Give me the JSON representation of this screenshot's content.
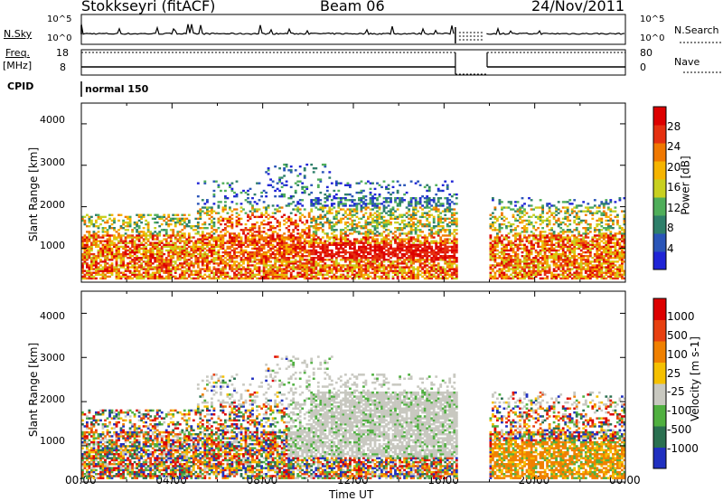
{
  "header": {
    "title": "Stokkseyri (fitACF)",
    "beam": "Beam 06",
    "date": "24/Nov/2011"
  },
  "side_labels": {
    "nsky": "N.Sky",
    "freq": "Freq.",
    "mhz": "[MHz]",
    "cpid": "CPID",
    "nsearch": "N.Search",
    "nave": "Nave"
  },
  "cpid_value": "normal 150",
  "chart_data": [
    {
      "type": "line",
      "panel": "N.Sky / N.Search",
      "ylabel_left": [
        "10^5",
        "10^0"
      ],
      "ylabel_right": [
        "10^5",
        "10^0"
      ],
      "gap_hours": [
        16.5,
        17.9
      ]
    },
    {
      "type": "line",
      "panel": "Freq / Nave",
      "ylabel_left": [
        "18",
        "8"
      ],
      "ylabel_right": [
        "80",
        "0"
      ],
      "gap_hours": [
        16.5,
        17.9
      ]
    },
    {
      "type": "heatmap",
      "panel": "Power",
      "ylabel": "Slant Range [km]",
      "y_ticks": [
        "4000",
        "3000",
        "2000",
        "1000"
      ],
      "ylim": [
        180,
        4500
      ],
      "colorbar_label": "Power [dB]",
      "colorbar_ticks": [
        "28",
        "24",
        "20",
        "16",
        "12",
        "8",
        "4"
      ],
      "colors": [
        "#1f24d6",
        "#2a55b8",
        "#2e7f6a",
        "#4fae5a",
        "#c8d020",
        "#f5b400",
        "#f07800",
        "#e53010",
        "#dd0000"
      ]
    },
    {
      "type": "heatmap",
      "panel": "Velocity",
      "ylabel": "Slant Range [km]",
      "y_ticks": [
        "4000",
        "3000",
        "2000",
        "1000"
      ],
      "ylim": [
        180,
        4500
      ],
      "colorbar_label": "Velocity  [m s-1]",
      "colorbar_ticks": [
        "1000",
        "500",
        "100",
        "25",
        "-25",
        "-100",
        "-500",
        "-1000"
      ],
      "colors": [
        "#2030c0",
        "#2a7050",
        "#50b040",
        "#c8c8c0",
        "#f5c000",
        "#f08000",
        "#e84010",
        "#dd0000"
      ]
    }
  ],
  "x_axis": {
    "ticks": [
      "00:00",
      "04:00",
      "08:00",
      "12:00",
      "16:00",
      "20:00",
      "00:00"
    ],
    "label": "Time UT"
  }
}
